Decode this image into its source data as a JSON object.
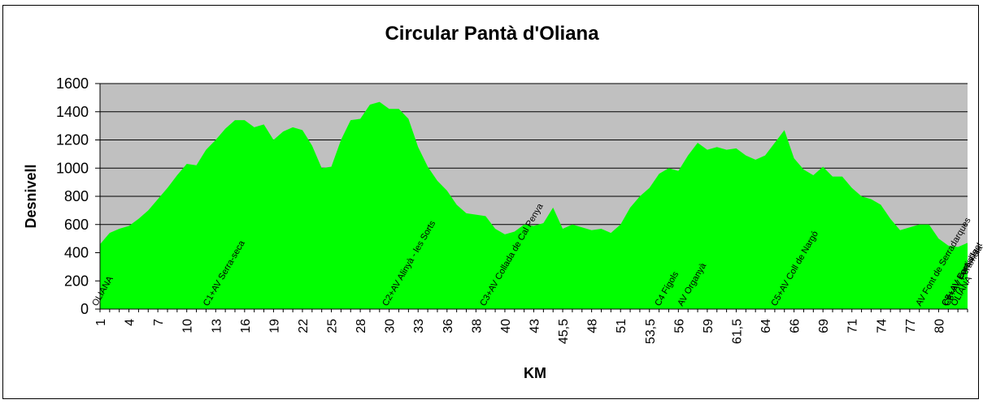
{
  "chart_data": {
    "type": "area",
    "title": "Circular Pantà d'Oliana",
    "xlabel": "KM",
    "ylabel": "Desnivell",
    "ylim": [
      0,
      1600
    ],
    "yticks": [
      0,
      200,
      400,
      600,
      800,
      1000,
      1200,
      1400,
      1600
    ],
    "xtick_labels": [
      "1",
      "4",
      "7",
      "10",
      "13",
      "16",
      "19",
      "22",
      "25",
      "28",
      "30",
      "33",
      "36",
      "38",
      "40",
      "43",
      "45,5",
      "48",
      "51",
      "53,5",
      "56",
      "59",
      "61,5",
      "64",
      "66",
      "69",
      "71",
      "74",
      "77",
      "80"
    ],
    "grid": true,
    "colors": {
      "fill": "#00ff00",
      "plot_bg": "#c0c0c0",
      "grid": "#000000"
    },
    "series": [
      {
        "values": [
          460,
          540,
          570,
          590,
          640,
          700,
          780,
          860,
          950,
          1030,
          1020,
          1130,
          1200,
          1280,
          1340,
          1340,
          1290,
          1310,
          1200,
          1260,
          1290,
          1270,
          1160,
          1000,
          1010,
          1200,
          1340,
          1350,
          1450,
          1470,
          1420,
          1420,
          1350,
          1150,
          1010,
          910,
          840,
          740,
          680,
          670,
          660,
          570,
          530,
          550,
          600,
          590,
          610,
          720,
          570,
          600,
          580,
          560,
          570,
          540,
          600,
          720,
          800,
          860,
          960,
          1000,
          980,
          1090,
          1180,
          1130,
          1150,
          1130,
          1140,
          1090,
          1060,
          1090,
          1180,
          1270,
          1070,
          990,
          950,
          1010,
          940,
          940,
          860,
          800,
          780,
          740,
          640,
          560,
          580,
          600,
          600,
          500,
          450,
          440,
          470
        ]
      }
    ],
    "annotations": [
      "OLIANA",
      "C1+AV Serra-seca",
      "C2+AV Alinyà - les Sorts",
      "C3+AV Collada de Cal Penya",
      "C4 Fígols",
      "AV Organyà",
      "C5+AV Coll de Nargó",
      "AV Font de Serradarques",
      "C6+AV Font d'Isot",
      "C7+AV Cortiuda",
      "C8+AV Peramola",
      "OLIANA"
    ]
  }
}
